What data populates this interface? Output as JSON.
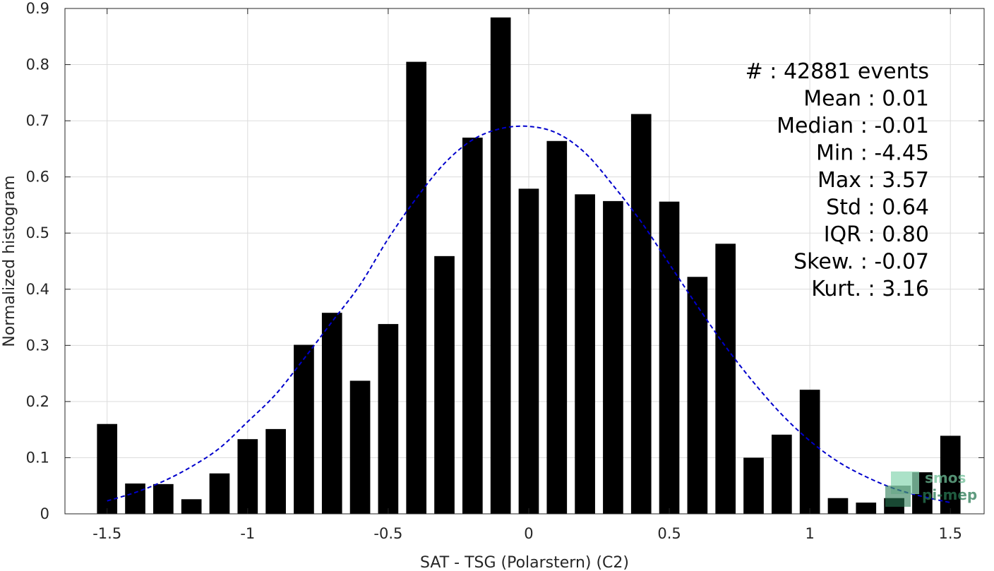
{
  "chart_data": {
    "type": "bar",
    "xlabel": "SAT - TSG (Polarstern) (C2)",
    "ylabel": "Normalized histogram",
    "xlim": [
      -1.65,
      1.62
    ],
    "ylim": [
      0,
      0.9
    ],
    "xticks": [
      -1.5,
      -1,
      -0.5,
      0,
      0.5,
      1,
      1.5
    ],
    "xtick_labels": [
      "-1.5",
      "-1",
      "-0.5",
      "0",
      "0.5",
      "1",
      "1.5"
    ],
    "yticks": [
      0,
      0.1,
      0.2,
      0.3,
      0.4,
      0.5,
      0.6,
      0.7,
      0.8,
      0.9
    ],
    "ytick_labels": [
      "0",
      "0.1",
      "0.2",
      "0.3",
      "0.4",
      "0.5",
      "0.6",
      "0.7",
      "0.8",
      "0.9"
    ],
    "grid": true,
    "bar_color": "#000000",
    "x": [
      -1.5,
      -1.4,
      -1.3,
      -1.2,
      -1.1,
      -1.0,
      -0.9,
      -0.8,
      -0.7,
      -0.6,
      -0.5,
      -0.4,
      -0.3,
      -0.2,
      -0.1,
      0.0,
      0.1,
      0.2,
      0.3,
      0.4,
      0.5,
      0.6,
      0.7,
      0.8,
      0.9,
      1.0,
      1.1,
      1.2,
      1.3,
      1.4,
      1.5
    ],
    "values": [
      0.16,
      0.054,
      0.053,
      0.026,
      0.072,
      0.133,
      0.151,
      0.301,
      0.358,
      0.237,
      0.338,
      0.805,
      0.459,
      0.67,
      0.884,
      0.579,
      0.664,
      0.569,
      0.557,
      0.712,
      0.556,
      0.422,
      0.481,
      0.1,
      0.141,
      0.221,
      0.028,
      0.02,
      0.028,
      0.074,
      0.139
    ],
    "fit_curve": {
      "style": "dashed",
      "color": "#0000cc",
      "x": [
        -1.5,
        -1.4,
        -1.3,
        -1.2,
        -1.1,
        -1.0,
        -0.9,
        -0.8,
        -0.7,
        -0.6,
        -0.5,
        -0.4,
        -0.3,
        -0.2,
        -0.1,
        0.0,
        0.1,
        0.2,
        0.3,
        0.4,
        0.5,
        0.6,
        0.7,
        0.8,
        0.9,
        1.0,
        1.1,
        1.2,
        1.3,
        1.4,
        1.5
      ],
      "y": [
        0.023,
        0.038,
        0.058,
        0.084,
        0.117,
        0.164,
        0.213,
        0.276,
        0.342,
        0.408,
        0.49,
        0.562,
        0.624,
        0.666,
        0.686,
        0.69,
        0.678,
        0.643,
        0.585,
        0.52,
        0.445,
        0.37,
        0.298,
        0.234,
        0.177,
        0.13,
        0.093,
        0.066,
        0.045,
        0.031,
        0.02
      ]
    },
    "stats": [
      {
        "key": "#  ",
        "value": ": 42881 events"
      },
      {
        "key": "Mean ",
        "value": ": 0.01"
      },
      {
        "key": "Median ",
        "value": ": -0.01"
      },
      {
        "key": "Min ",
        "value": ": -4.45"
      },
      {
        "key": "Max ",
        "value": ": 3.57"
      },
      {
        "key": "Std ",
        "value": ": 0.64"
      },
      {
        "key": "IQR ",
        "value": ": 0.80"
      },
      {
        "key": "Skew. ",
        "value": ": -0.07"
      },
      {
        "key": "Kurt. ",
        "value": ": 3.16"
      }
    ]
  },
  "logo": {
    "line1": "smos",
    "line2": "pi-mep",
    "color_light": "#8fd9b6",
    "color_dark": "#2a7a55"
  }
}
